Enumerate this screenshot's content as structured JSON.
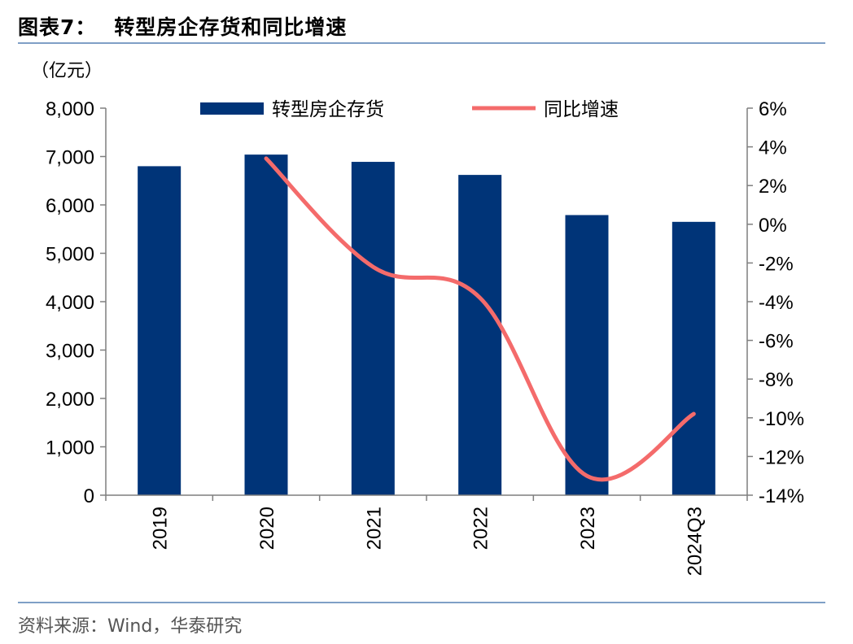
{
  "header": {
    "figure_label": "图表7：",
    "title": "转型房企存货和同比增速"
  },
  "footer": {
    "source": "资料来源：Wind，华泰研究"
  },
  "chart_data": {
    "type": "bar",
    "categories": [
      "2019",
      "2020",
      "2021",
      "2022",
      "2023",
      "2024Q3"
    ],
    "y_unit": "（亿元）",
    "series": [
      {
        "name": "转型房企存货",
        "type": "bar",
        "axis": "left",
        "color": "#003478",
        "values": [
          6800,
          7040,
          6890,
          6620,
          5790,
          5650
        ]
      },
      {
        "name": "同比增速",
        "type": "line",
        "axis": "right",
        "color": "#f46b6b",
        "values": [
          null,
          3.4,
          -2.2,
          -3.8,
          -13.0,
          -9.8
        ]
      }
    ],
    "y_left": {
      "min": 0,
      "max": 8000,
      "step": 1000,
      "tick_labels": [
        "0",
        "1,000",
        "2,000",
        "3,000",
        "4,000",
        "5,000",
        "6,000",
        "7,000",
        "8,000"
      ]
    },
    "y_right": {
      "min": -14,
      "max": 6,
      "step": 2,
      "tick_labels": [
        "-14%",
        "-12%",
        "-10%",
        "-8%",
        "-6%",
        "-4%",
        "-2%",
        "0%",
        "2%",
        "4%",
        "6%"
      ]
    },
    "grid": false,
    "legend_position": "top-center"
  }
}
